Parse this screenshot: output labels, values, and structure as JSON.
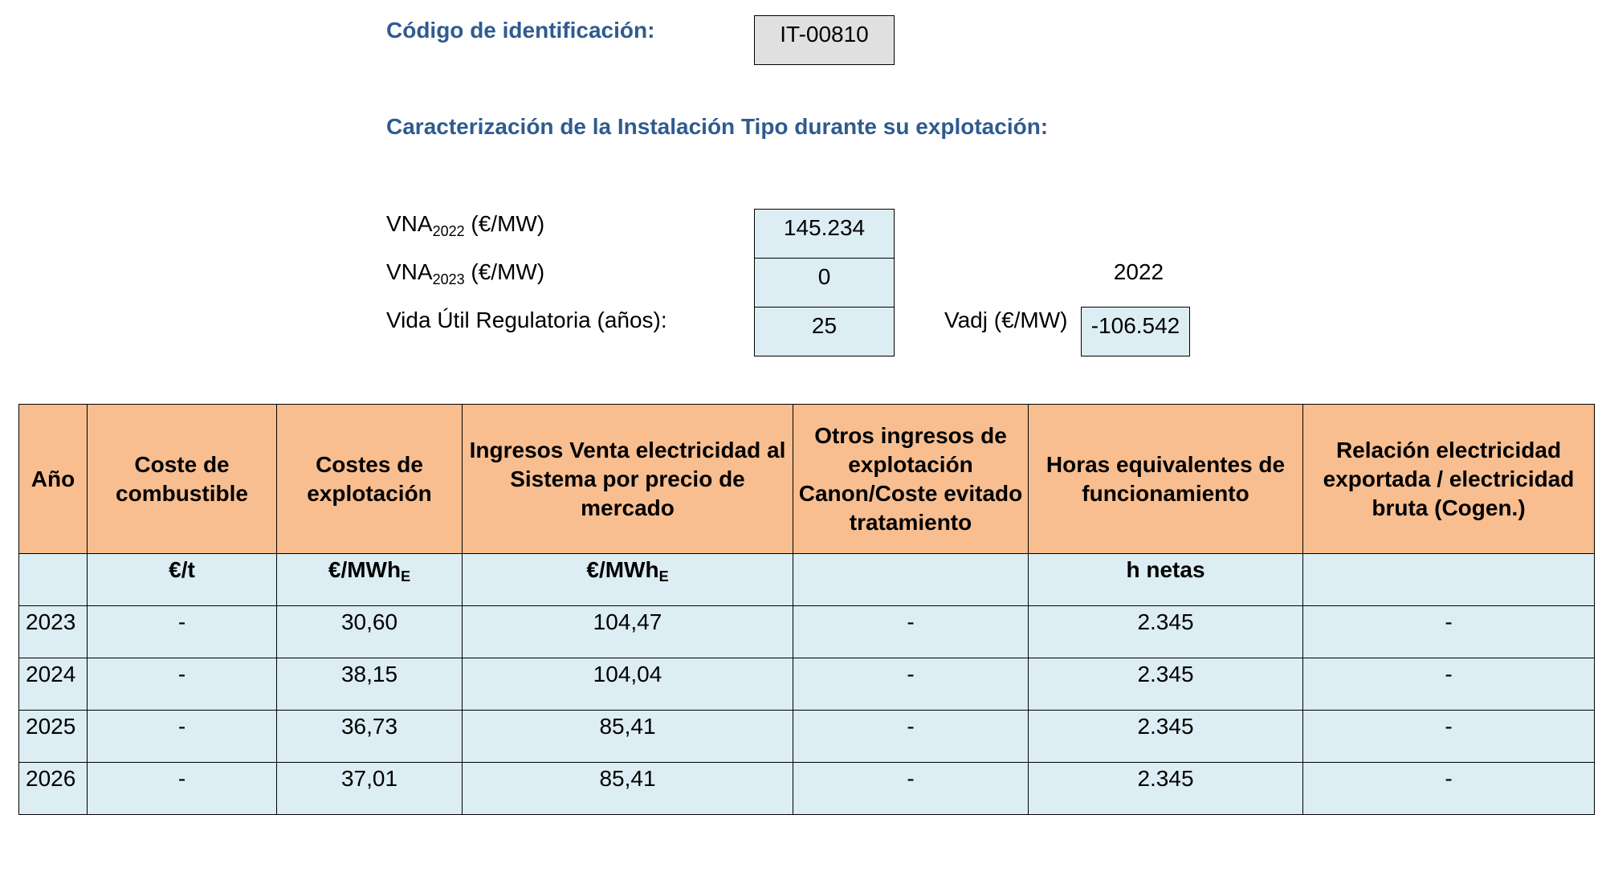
{
  "id_section": {
    "label": "Código de identificación:",
    "code": "IT-00810"
  },
  "section_title": "Caracterización de la Instalación Tipo durante su explotación:",
  "params": {
    "vna2022": {
      "prefix": "VNA",
      "sub": "2022",
      "suffix": " (€/MW)",
      "value": "145.234"
    },
    "vna2023": {
      "prefix": "VNA",
      "sub": "2023",
      "suffix": " (€/MW)",
      "value": "0"
    },
    "vida_util": {
      "label": "Vida Útil Regulatoria (años):",
      "value": "25"
    },
    "year_label": "2022",
    "vadj": {
      "label": "Vadj (€/MW)",
      "value": "-106.542"
    }
  },
  "table": {
    "headers": [
      "Año",
      "Coste de combustible",
      "Costes de explotación",
      "Ingresos Venta electricidad al Sistema por precio de mercado",
      "Otros ingresos de explotación Canon/Coste evitado tratamiento",
      "Horas equivalentes de funcionamiento",
      "Relación electricidad exportada / electricidad bruta (Cogen.)"
    ],
    "units": {
      "year": "",
      "fuel": "€/t",
      "opex_main": "€/MWh",
      "opex_sub": "E",
      "revenue_main": "€/MWh",
      "revenue_sub": "E",
      "other": "",
      "hours": "h netas",
      "ratio": ""
    },
    "rows": [
      {
        "year": "2023",
        "fuel": "-",
        "opex": "30,60",
        "revenue": "104,47",
        "other": "-",
        "hours": "2.345",
        "ratio": "-"
      },
      {
        "year": "2024",
        "fuel": "-",
        "opex": "38,15",
        "revenue": "104,04",
        "other": "-",
        "hours": "2.345",
        "ratio": "-"
      },
      {
        "year": "2025",
        "fuel": "-",
        "opex": "36,73",
        "revenue": "85,41",
        "other": "-",
        "hours": "2.345",
        "ratio": "-"
      },
      {
        "year": "2026",
        "fuel": "-",
        "opex": "37,01",
        "revenue": "85,41",
        "other": "-",
        "hours": "2.345",
        "ratio": "-"
      }
    ]
  },
  "colors": {
    "heading": "#2f5b8f",
    "header_fill": "#f8be90",
    "cell_fill": "#dcedf3",
    "code_fill": "#e0e0e0"
  }
}
